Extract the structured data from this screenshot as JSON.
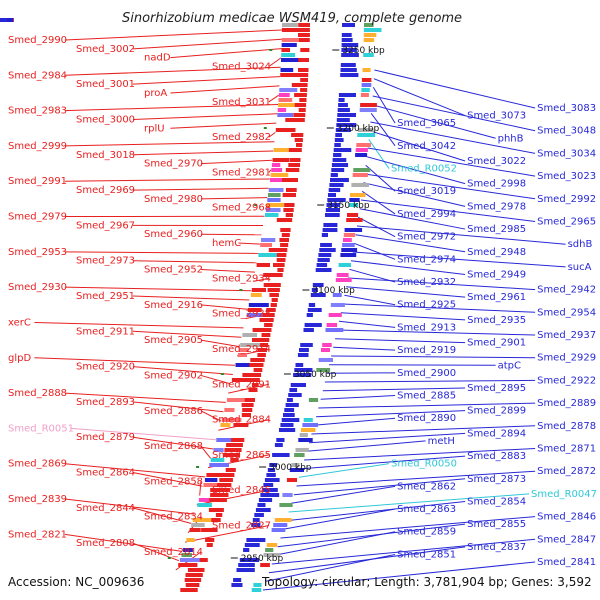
{
  "title": "Sinorhizobium medicae WSM419, complete genome",
  "accession_text": "Accession: NC_009636",
  "topology_text": "Topology: circular; Length: 3,781,904 bp; Genes: 3,592",
  "colors": {
    "forward_gene": "#e82020",
    "reverse_gene": "#2828d8",
    "rna_gene": "#30c8d8",
    "pseudo_gene": "#f0a0c8",
    "backbone": "#888888",
    "tick_mark": "#2a8a2a"
  },
  "ticks": [
    {
      "label": "3250 kbp"
    },
    {
      "label": "3200 kbp"
    },
    {
      "label": "3150 kbp"
    },
    {
      "label": "3100 kbp"
    },
    {
      "label": "3050 kbp"
    },
    {
      "label": "3000 kbp"
    },
    {
      "label": "2950 kbp"
    }
  ],
  "left_labels": [
    {
      "text": "Smed_2990",
      "type": "forward"
    },
    {
      "text": "Smed_3002",
      "type": "forward"
    },
    {
      "text": "nadD",
      "type": "forward"
    },
    {
      "text": "Smed_3024",
      "type": "forward"
    },
    {
      "text": "Smed_2984",
      "type": "forward"
    },
    {
      "text": "Smed_3001",
      "type": "forward"
    },
    {
      "text": "proA",
      "type": "forward"
    },
    {
      "text": "Smed_3031",
      "type": "forward"
    },
    {
      "text": "Smed_2983",
      "type": "forward"
    },
    {
      "text": "Smed_3000",
      "type": "forward"
    },
    {
      "text": "rplU",
      "type": "forward"
    },
    {
      "text": "Smed_2982",
      "type": "forward"
    },
    {
      "text": "Smed_2999",
      "type": "forward"
    },
    {
      "text": "Smed_3018",
      "type": "forward"
    },
    {
      "text": "Smed_2970",
      "type": "forward"
    },
    {
      "text": "Smed_2981",
      "type": "forward"
    },
    {
      "text": "Smed_2991",
      "type": "forward"
    },
    {
      "text": "Smed_2969",
      "type": "forward"
    },
    {
      "text": "Smed_2980",
      "type": "forward"
    },
    {
      "text": "Smed_2968",
      "type": "forward"
    },
    {
      "text": "Smed_2979",
      "type": "forward"
    },
    {
      "text": "Smed_2967",
      "type": "forward"
    },
    {
      "text": "Smed_2960",
      "type": "forward"
    },
    {
      "text": "hemC",
      "type": "forward"
    },
    {
      "text": "Smed_2953",
      "type": "forward"
    },
    {
      "text": "Smed_2973",
      "type": "forward"
    },
    {
      "text": "Smed_2952",
      "type": "forward"
    },
    {
      "text": "Smed_2934",
      "type": "forward"
    },
    {
      "text": "Smed_2930",
      "type": "forward"
    },
    {
      "text": "Smed_2951",
      "type": "forward"
    },
    {
      "text": "Smed_2916",
      "type": "forward"
    },
    {
      "text": "Smed_2928",
      "type": "forward"
    },
    {
      "text": "xerC",
      "type": "forward"
    },
    {
      "text": "Smed_2911",
      "type": "forward"
    },
    {
      "text": "Smed_2905",
      "type": "forward"
    },
    {
      "text": "Smed_2914",
      "type": "forward"
    },
    {
      "text": "glpD",
      "type": "forward"
    },
    {
      "text": "Smed_2920",
      "type": "forward"
    },
    {
      "text": "Smed_2902",
      "type": "forward"
    },
    {
      "text": "Smed_2891",
      "type": "forward"
    },
    {
      "text": "Smed_2888",
      "type": "forward"
    },
    {
      "text": "Smed_2893",
      "type": "forward"
    },
    {
      "text": "Smed_2886",
      "type": "forward"
    },
    {
      "text": "Smed_2884",
      "type": "forward"
    },
    {
      "text": "Smed_R0051",
      "type": "pseudo"
    },
    {
      "text": "Smed_2879",
      "type": "forward"
    },
    {
      "text": "Smed_2868",
      "type": "forward"
    },
    {
      "text": "Smed_2865",
      "type": "forward"
    },
    {
      "text": "Smed_2869",
      "type": "forward"
    },
    {
      "text": "Smed_2864",
      "type": "forward"
    },
    {
      "text": "Smed_2858",
      "type": "forward"
    },
    {
      "text": "Smed_2845",
      "type": "forward"
    },
    {
      "text": "Smed_2839",
      "type": "forward"
    },
    {
      "text": "Smed_2844",
      "type": "forward"
    },
    {
      "text": "Smed_2834",
      "type": "forward"
    },
    {
      "text": "Smed_2827",
      "type": "forward"
    },
    {
      "text": "Smed_2821",
      "type": "forward"
    },
    {
      "text": "Smed_2808",
      "type": "forward"
    },
    {
      "text": "Smed_2814",
      "type": "forward"
    }
  ],
  "right_labels": [
    {
      "text": "Smed_3083",
      "type": "reverse"
    },
    {
      "text": "Smed_3073",
      "type": "reverse"
    },
    {
      "text": "Smed_3065",
      "type": "reverse"
    },
    {
      "text": "Smed_3048",
      "type": "reverse"
    },
    {
      "text": "phhB",
      "type": "reverse"
    },
    {
      "text": "Smed_3042",
      "type": "reverse"
    },
    {
      "text": "Smed_3034",
      "type": "reverse"
    },
    {
      "text": "Smed_3022",
      "type": "reverse"
    },
    {
      "text": "Smed_R0052",
      "type": "rna"
    },
    {
      "text": "Smed_3023",
      "type": "reverse"
    },
    {
      "text": "Smed_2998",
      "type": "reverse"
    },
    {
      "text": "Smed_3019",
      "type": "reverse"
    },
    {
      "text": "Smed_2992",
      "type": "reverse"
    },
    {
      "text": "Smed_2978",
      "type": "reverse"
    },
    {
      "text": "Smed_2994",
      "type": "reverse"
    },
    {
      "text": "Smed_2965",
      "type": "reverse"
    },
    {
      "text": "Smed_2985",
      "type": "reverse"
    },
    {
      "text": "Smed_2972",
      "type": "reverse"
    },
    {
      "text": "sdhB",
      "type": "reverse"
    },
    {
      "text": "Smed_2948",
      "type": "reverse"
    },
    {
      "text": "Smed_2974",
      "type": "reverse"
    },
    {
      "text": "sucA",
      "type": "reverse"
    },
    {
      "text": "Smed_2949",
      "type": "reverse"
    },
    {
      "text": "Smed_2932",
      "type": "reverse"
    },
    {
      "text": "Smed_2942",
      "type": "reverse"
    },
    {
      "text": "Smed_2961",
      "type": "reverse"
    },
    {
      "text": "Smed_2925",
      "type": "reverse"
    },
    {
      "text": "Smed_2954",
      "type": "reverse"
    },
    {
      "text": "Smed_2935",
      "type": "reverse"
    },
    {
      "text": "Smed_2913",
      "type": "reverse"
    },
    {
      "text": "Smed_2937",
      "type": "reverse"
    },
    {
      "text": "Smed_2901",
      "type": "reverse"
    },
    {
      "text": "Smed_2919",
      "type": "reverse"
    },
    {
      "text": "Smed_2929",
      "type": "reverse"
    },
    {
      "text": "atpC",
      "type": "reverse"
    },
    {
      "text": "Smed_2900",
      "type": "reverse"
    },
    {
      "text": "Smed_2922",
      "type": "reverse"
    },
    {
      "text": "Smed_2895",
      "type": "reverse"
    },
    {
      "text": "Smed_2885",
      "type": "reverse"
    },
    {
      "text": "Smed_2889",
      "type": "reverse"
    },
    {
      "text": "Smed_2899",
      "type": "reverse"
    },
    {
      "text": "Smed_2890",
      "type": "reverse"
    },
    {
      "text": "Smed_2878",
      "type": "reverse"
    },
    {
      "text": "Smed_2894",
      "type": "reverse"
    },
    {
      "text": "metH",
      "type": "reverse"
    },
    {
      "text": "Smed_2871",
      "type": "reverse"
    },
    {
      "text": "Smed_2883",
      "type": "reverse"
    },
    {
      "text": "Smed_R0050",
      "type": "rna"
    },
    {
      "text": "Smed_2872",
      "type": "reverse"
    },
    {
      "text": "Smed_2873",
      "type": "reverse"
    },
    {
      "text": "Smed_2862",
      "type": "reverse"
    },
    {
      "text": "Smed_R0047",
      "type": "rna"
    },
    {
      "text": "Smed_2854",
      "type": "reverse"
    },
    {
      "text": "Smed_2863",
      "type": "reverse"
    },
    {
      "text": "Smed_2846",
      "type": "reverse"
    },
    {
      "text": "Smed_2855",
      "type": "reverse"
    },
    {
      "text": "Smed_2859",
      "type": "reverse"
    },
    {
      "text": "Smed_2847",
      "type": "reverse"
    },
    {
      "text": "Smed_2837",
      "type": "reverse"
    },
    {
      "text": "Smed_2851",
      "type": "reverse"
    },
    {
      "text": "Smed_2841",
      "type": "reverse"
    }
  ]
}
